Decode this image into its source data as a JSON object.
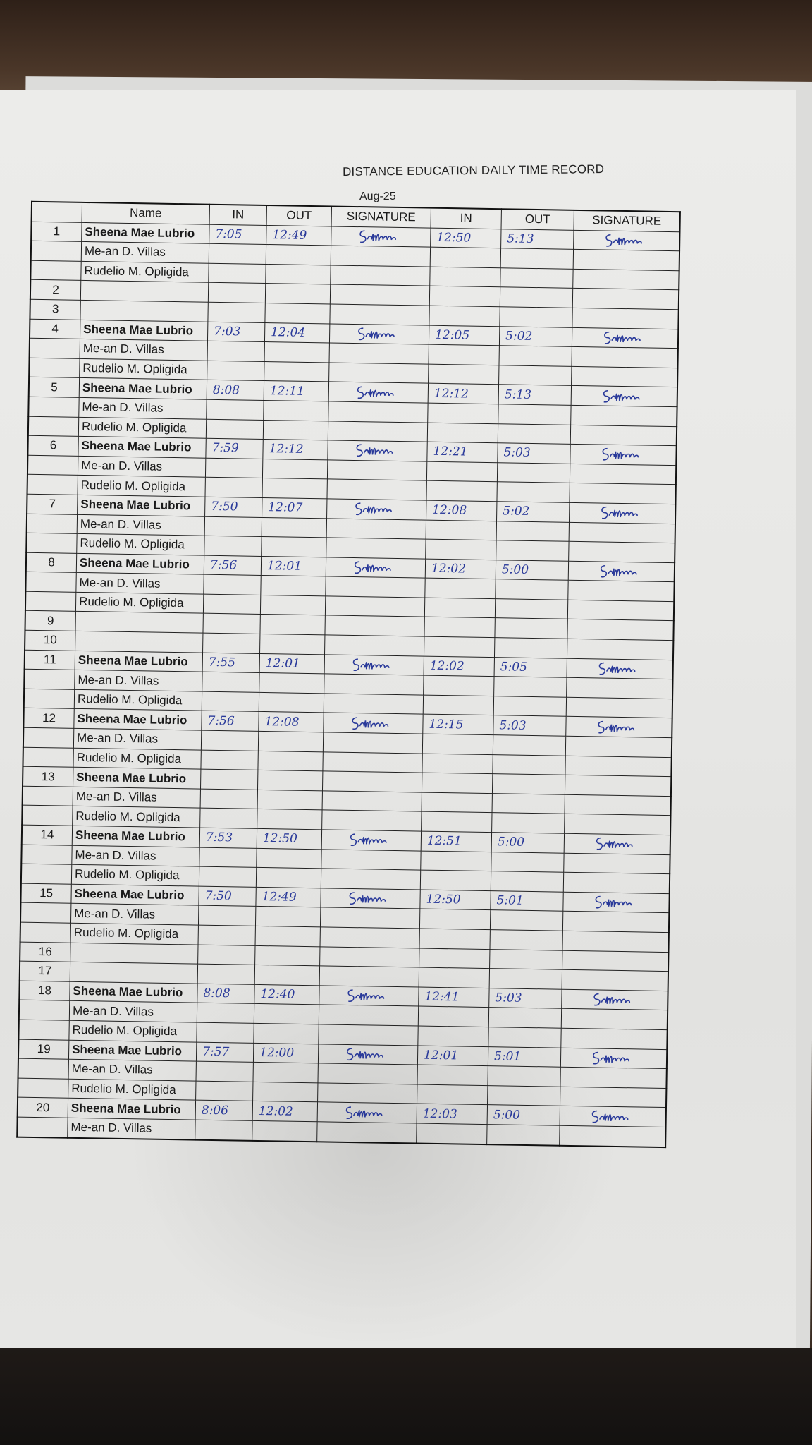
{
  "document": {
    "title": "DISTANCE EDUCATION DAILY TIME RECORD",
    "month": "Aug-25",
    "ink_color": "#2a3a9a",
    "headers": {
      "day": "",
      "name": "Name",
      "am_in": "IN",
      "am_out": "OUT",
      "am_signature": "SIGNATURE",
      "pm_in": "IN",
      "pm_out": "OUT",
      "pm_signature": "SIGNATURE"
    },
    "signature_text": "Salubin",
    "rows": [
      {
        "day": "1",
        "name": "Sheena Mae Lubrio",
        "bold": true,
        "am_in": "7:05",
        "am_out": "12:49",
        "am_sig": true,
        "pm_in": "12:50",
        "pm_out": "5:13",
        "pm_sig": true
      },
      {
        "day": "",
        "name": "Me-an D. Villas"
      },
      {
        "day": "",
        "name": "Rudelio M. Opligida"
      },
      {
        "day": "2",
        "name": ""
      },
      {
        "day": "3",
        "name": ""
      },
      {
        "day": "4",
        "name": "Sheena Mae Lubrio",
        "bold": true,
        "am_in": "7:03",
        "am_out": "12:04",
        "am_sig": true,
        "pm_in": "12:05",
        "pm_out": "5:02",
        "pm_sig": true
      },
      {
        "day": "",
        "name": "Me-an D. Villas"
      },
      {
        "day": "",
        "name": "Rudelio M. Opligida"
      },
      {
        "day": "5",
        "name": "Sheena Mae Lubrio",
        "bold": true,
        "am_in": "8:08",
        "am_out": "12:11",
        "am_sig": true,
        "pm_in": "12:12",
        "pm_out": "5:13",
        "pm_sig": true
      },
      {
        "day": "",
        "name": "Me-an D. Villas"
      },
      {
        "day": "",
        "name": "Rudelio M. Opligida"
      },
      {
        "day": "6",
        "name": "Sheena Mae Lubrio",
        "bold": true,
        "am_in": "7:59",
        "am_out": "12:12",
        "am_sig": true,
        "pm_in": "12:21",
        "pm_out": "5:03",
        "pm_sig": true
      },
      {
        "day": "",
        "name": "Me-an D. Villas"
      },
      {
        "day": "",
        "name": "Rudelio M. Opligida"
      },
      {
        "day": "7",
        "name": "Sheena Mae Lubrio",
        "bold": true,
        "am_in": "7:50",
        "am_out": "12:07",
        "am_sig": true,
        "pm_in": "12:08",
        "pm_out": "5:02",
        "pm_sig": true
      },
      {
        "day": "",
        "name": "Me-an D. Villas"
      },
      {
        "day": "",
        "name": "Rudelio M. Opligida"
      },
      {
        "day": "8",
        "name": "Sheena Mae Lubrio",
        "bold": true,
        "am_in": "7:56",
        "am_out": "12:01",
        "am_sig": true,
        "pm_in": "12:02",
        "pm_out": "5:00",
        "pm_sig": true
      },
      {
        "day": "",
        "name": "Me-an D. Villas"
      },
      {
        "day": "",
        "name": "Rudelio M. Opligida"
      },
      {
        "day": "9",
        "name": ""
      },
      {
        "day": "10",
        "name": ""
      },
      {
        "day": "11",
        "name": "Sheena Mae Lubrio",
        "bold": true,
        "am_in": "7:55",
        "am_out": "12:01",
        "am_sig": true,
        "pm_in": "12:02",
        "pm_out": "5:05",
        "pm_sig": true
      },
      {
        "day": "",
        "name": "Me-an D. Villas"
      },
      {
        "day": "",
        "name": "Rudelio M. Opligida"
      },
      {
        "day": "12",
        "name": "Sheena Mae Lubrio",
        "bold": true,
        "am_in": "7:56",
        "am_out": "12:08",
        "am_sig": true,
        "pm_in": "12:15",
        "pm_out": "5:03",
        "pm_sig": true
      },
      {
        "day": "",
        "name": "Me-an D. Villas"
      },
      {
        "day": "",
        "name": "Rudelio M. Opligida"
      },
      {
        "day": "13",
        "name": "Sheena Mae Lubrio",
        "bold": true
      },
      {
        "day": "",
        "name": "Me-an D. Villas"
      },
      {
        "day": "",
        "name": "Rudelio M. Opligida"
      },
      {
        "day": "14",
        "name": "Sheena Mae Lubrio",
        "bold": true,
        "am_in": "7:53",
        "am_out": "12:50",
        "am_sig": true,
        "pm_in": "12:51",
        "pm_out": "5:00",
        "pm_sig": true
      },
      {
        "day": "",
        "name": "Me-an D. Villas"
      },
      {
        "day": "",
        "name": "Rudelio M. Opligida"
      },
      {
        "day": "15",
        "name": "Sheena Mae Lubrio",
        "bold": true,
        "am_in": "7:50",
        "am_out": "12:49",
        "am_sig": true,
        "pm_in": "12:50",
        "pm_out": "5:01",
        "pm_sig": true
      },
      {
        "day": "",
        "name": "Me-an D. Villas"
      },
      {
        "day": "",
        "name": "Rudelio M. Opligida"
      },
      {
        "day": "16",
        "name": ""
      },
      {
        "day": "17",
        "name": ""
      },
      {
        "day": "18",
        "name": "Sheena Mae Lubrio",
        "bold": true,
        "am_in": "8:08",
        "am_out": "12:40",
        "am_sig": true,
        "pm_in": "12:41",
        "pm_out": "5:03",
        "pm_sig": true
      },
      {
        "day": "",
        "name": "Me-an D. Villas"
      },
      {
        "day": "",
        "name": "Rudelio M. Opligida"
      },
      {
        "day": "19",
        "name": "Sheena Mae Lubrio",
        "bold": true,
        "am_in": "7:57",
        "am_out": "12:00",
        "am_sig": true,
        "pm_in": "12:01",
        "pm_out": "5:01",
        "pm_sig": true
      },
      {
        "day": "",
        "name": "Me-an D. Villas"
      },
      {
        "day": "",
        "name": "Rudelio M. Opligida"
      },
      {
        "day": "20",
        "name": "Sheena Mae Lubrio",
        "bold": true,
        "am_in": "8:06",
        "am_out": "12:02",
        "am_sig": true,
        "pm_in": "12:03",
        "pm_out": "5:00",
        "pm_sig": true
      },
      {
        "day": "",
        "name": "Me-an D. Villas"
      }
    ]
  }
}
